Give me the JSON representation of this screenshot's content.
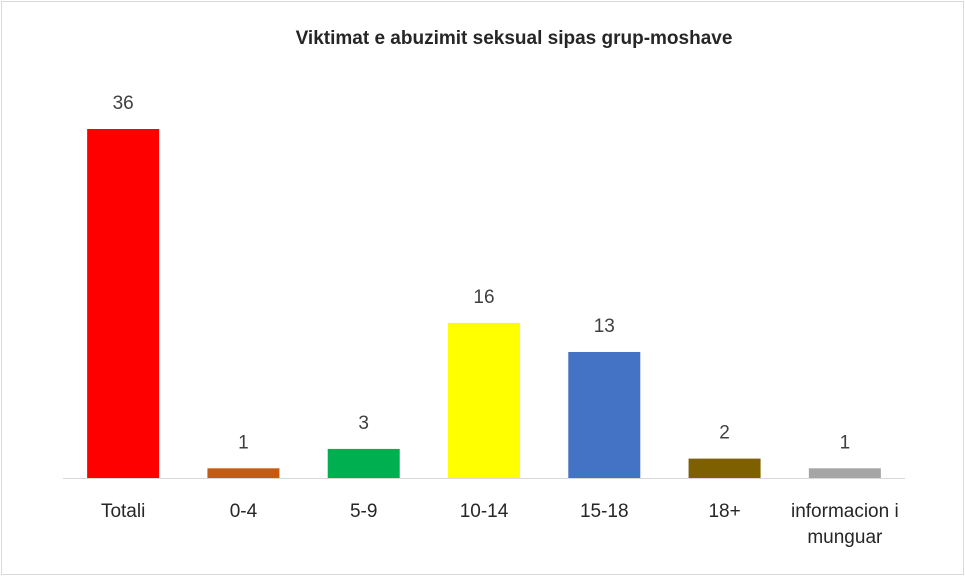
{
  "chart_data": {
    "type": "bar",
    "title": "Viktimat e abuzimit seksual sipas grup-moshave",
    "categories": [
      "Totali",
      "0-4",
      "5-9",
      "10-14",
      "15-18",
      "18+",
      "informacion i munguar"
    ],
    "values": [
      36,
      1,
      3,
      16,
      13,
      2,
      1
    ],
    "colors": [
      "#ff0000",
      "#c55a11",
      "#00b050",
      "#ffff00",
      "#4472c4",
      "#7f6000",
      "#a5a5a5"
    ]
  }
}
